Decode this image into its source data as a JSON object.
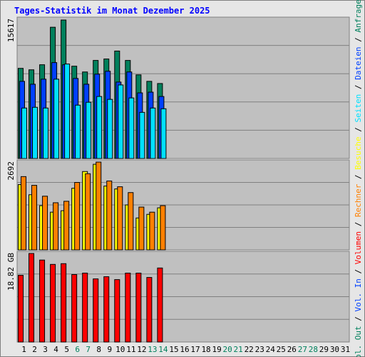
{
  "title": "Tages-Statistik im Monat Dezember 2025",
  "legend_separator": "/",
  "chart_data": [
    {
      "type": "bar",
      "ylim": [
        0,
        15617
      ],
      "yticks": [
        15617
      ],
      "series": [
        {
          "name": "Anfragen",
          "color": "#00805c",
          "values": [
            9960,
            9800,
            10358,
            14501,
            15298,
            10199,
            9561,
            10836,
            10995,
            11872,
            10836,
            9243,
            8526,
            8286,
            null,
            null,
            null,
            null,
            null,
            null,
            null,
            null,
            null,
            null,
            null,
            null,
            null,
            null,
            null,
            null,
            null
          ]
        },
        {
          "name": "Dateien",
          "color": "#0040ff",
          "values": [
            8526,
            8207,
            8765,
            10597,
            10358,
            8844,
            8207,
            9322,
            9641,
            8446,
            9561,
            7251,
            7330,
            6852,
            null,
            null,
            null,
            null,
            null,
            null,
            null,
            null,
            null,
            null,
            null,
            null,
            null,
            null,
            null,
            null,
            null
          ]
        },
        {
          "name": "Seiten",
          "color": "#00e0ff",
          "values": [
            5577,
            5657,
            5577,
            8765,
            10438,
            5896,
            6215,
            6852,
            6534,
            8127,
            6693,
            5099,
            5577,
            5498,
            null,
            null,
            null,
            null,
            null,
            null,
            null,
            null,
            null,
            null,
            null,
            null,
            null,
            null,
            null,
            null,
            null
          ]
        }
      ]
    },
    {
      "type": "bar",
      "ylim": [
        0,
        2692
      ],
      "yticks": [
        2692
      ],
      "series": [
        {
          "name": "Besuche",
          "color": "#ffff00",
          "values": [
            1954,
            1650,
            1324,
            1129,
            1172,
            1845,
            2345,
            2562,
            1910,
            1824,
            1346,
            955,
            1064,
            1259,
            null,
            null,
            null,
            null,
            null,
            null,
            null,
            null,
            null,
            null,
            null,
            null,
            null,
            null,
            null,
            null,
            null
          ]
        },
        {
          "name": "Rechner",
          "color": "#ff8000",
          "values": [
            2193,
            1932,
            1607,
            1411,
            1455,
            2019,
            2280,
            2627,
            2062,
            1889,
            1715,
            1281,
            1129,
            1324,
            null,
            null,
            null,
            null,
            null,
            null,
            null,
            null,
            null,
            null,
            null,
            null,
            null,
            null,
            null,
            null,
            null
          ]
        }
      ]
    },
    {
      "type": "bar",
      "ylim": [
        0,
        18.82
      ],
      "yticks": [
        {
          "value": 18.82,
          "label": "18.82 GB"
        }
      ],
      "categories": [
        "1",
        "2",
        "3",
        "4",
        "5",
        "6",
        "7",
        "8",
        "9",
        "10",
        "11",
        "12",
        "13",
        "14",
        "15",
        "16",
        "17",
        "18",
        "19",
        "20",
        "21",
        "22",
        "23",
        "24",
        "25",
        "26",
        "27",
        "28",
        "29",
        "30",
        "31"
      ],
      "category_colors": [
        "#000000",
        "#000000",
        "#000000",
        "#000000",
        "#000000",
        "#00805c",
        "#00805c",
        "#000000",
        "#000000",
        "#000000",
        "#000000",
        "#000000",
        "#00805c",
        "#00805c",
        "#000000",
        "#000000",
        "#000000",
        "#000000",
        "#000000",
        "#00805c",
        "#00805c",
        "#000000",
        "#000000",
        "#000000",
        "#000000",
        "#000000",
        "#00805c",
        "#00805c",
        "#000000",
        "#000000",
        "#000000"
      ],
      "series": [
        {
          "name": "Volumen",
          "color": "#ff0000",
          "values": [
            13.85,
            18.37,
            17.01,
            16.11,
            16.26,
            14.0,
            14.3,
            13.1,
            13.55,
            12.95,
            14.3,
            14.3,
            13.4,
            15.36,
            null,
            null,
            null,
            null,
            null,
            null,
            null,
            null,
            null,
            null,
            null,
            null,
            null,
            null,
            null,
            null,
            null
          ]
        },
        {
          "name": "Vol. In",
          "color": "#0040ff",
          "values": [
            null,
            null,
            null,
            null,
            null,
            null,
            null,
            null,
            null,
            null,
            null,
            null,
            null,
            null,
            null,
            null,
            null,
            null,
            null,
            null,
            null,
            null,
            null,
            null,
            null,
            null,
            null,
            null,
            null,
            null,
            null
          ]
        },
        {
          "name": "Vol. Out",
          "color": "#00805c",
          "values": [
            null,
            null,
            null,
            null,
            null,
            null,
            null,
            null,
            null,
            null,
            null,
            null,
            null,
            null,
            null,
            null,
            null,
            null,
            null,
            null,
            null,
            null,
            null,
            null,
            null,
            null,
            null,
            null,
            null,
            null,
            null
          ]
        }
      ]
    }
  ]
}
